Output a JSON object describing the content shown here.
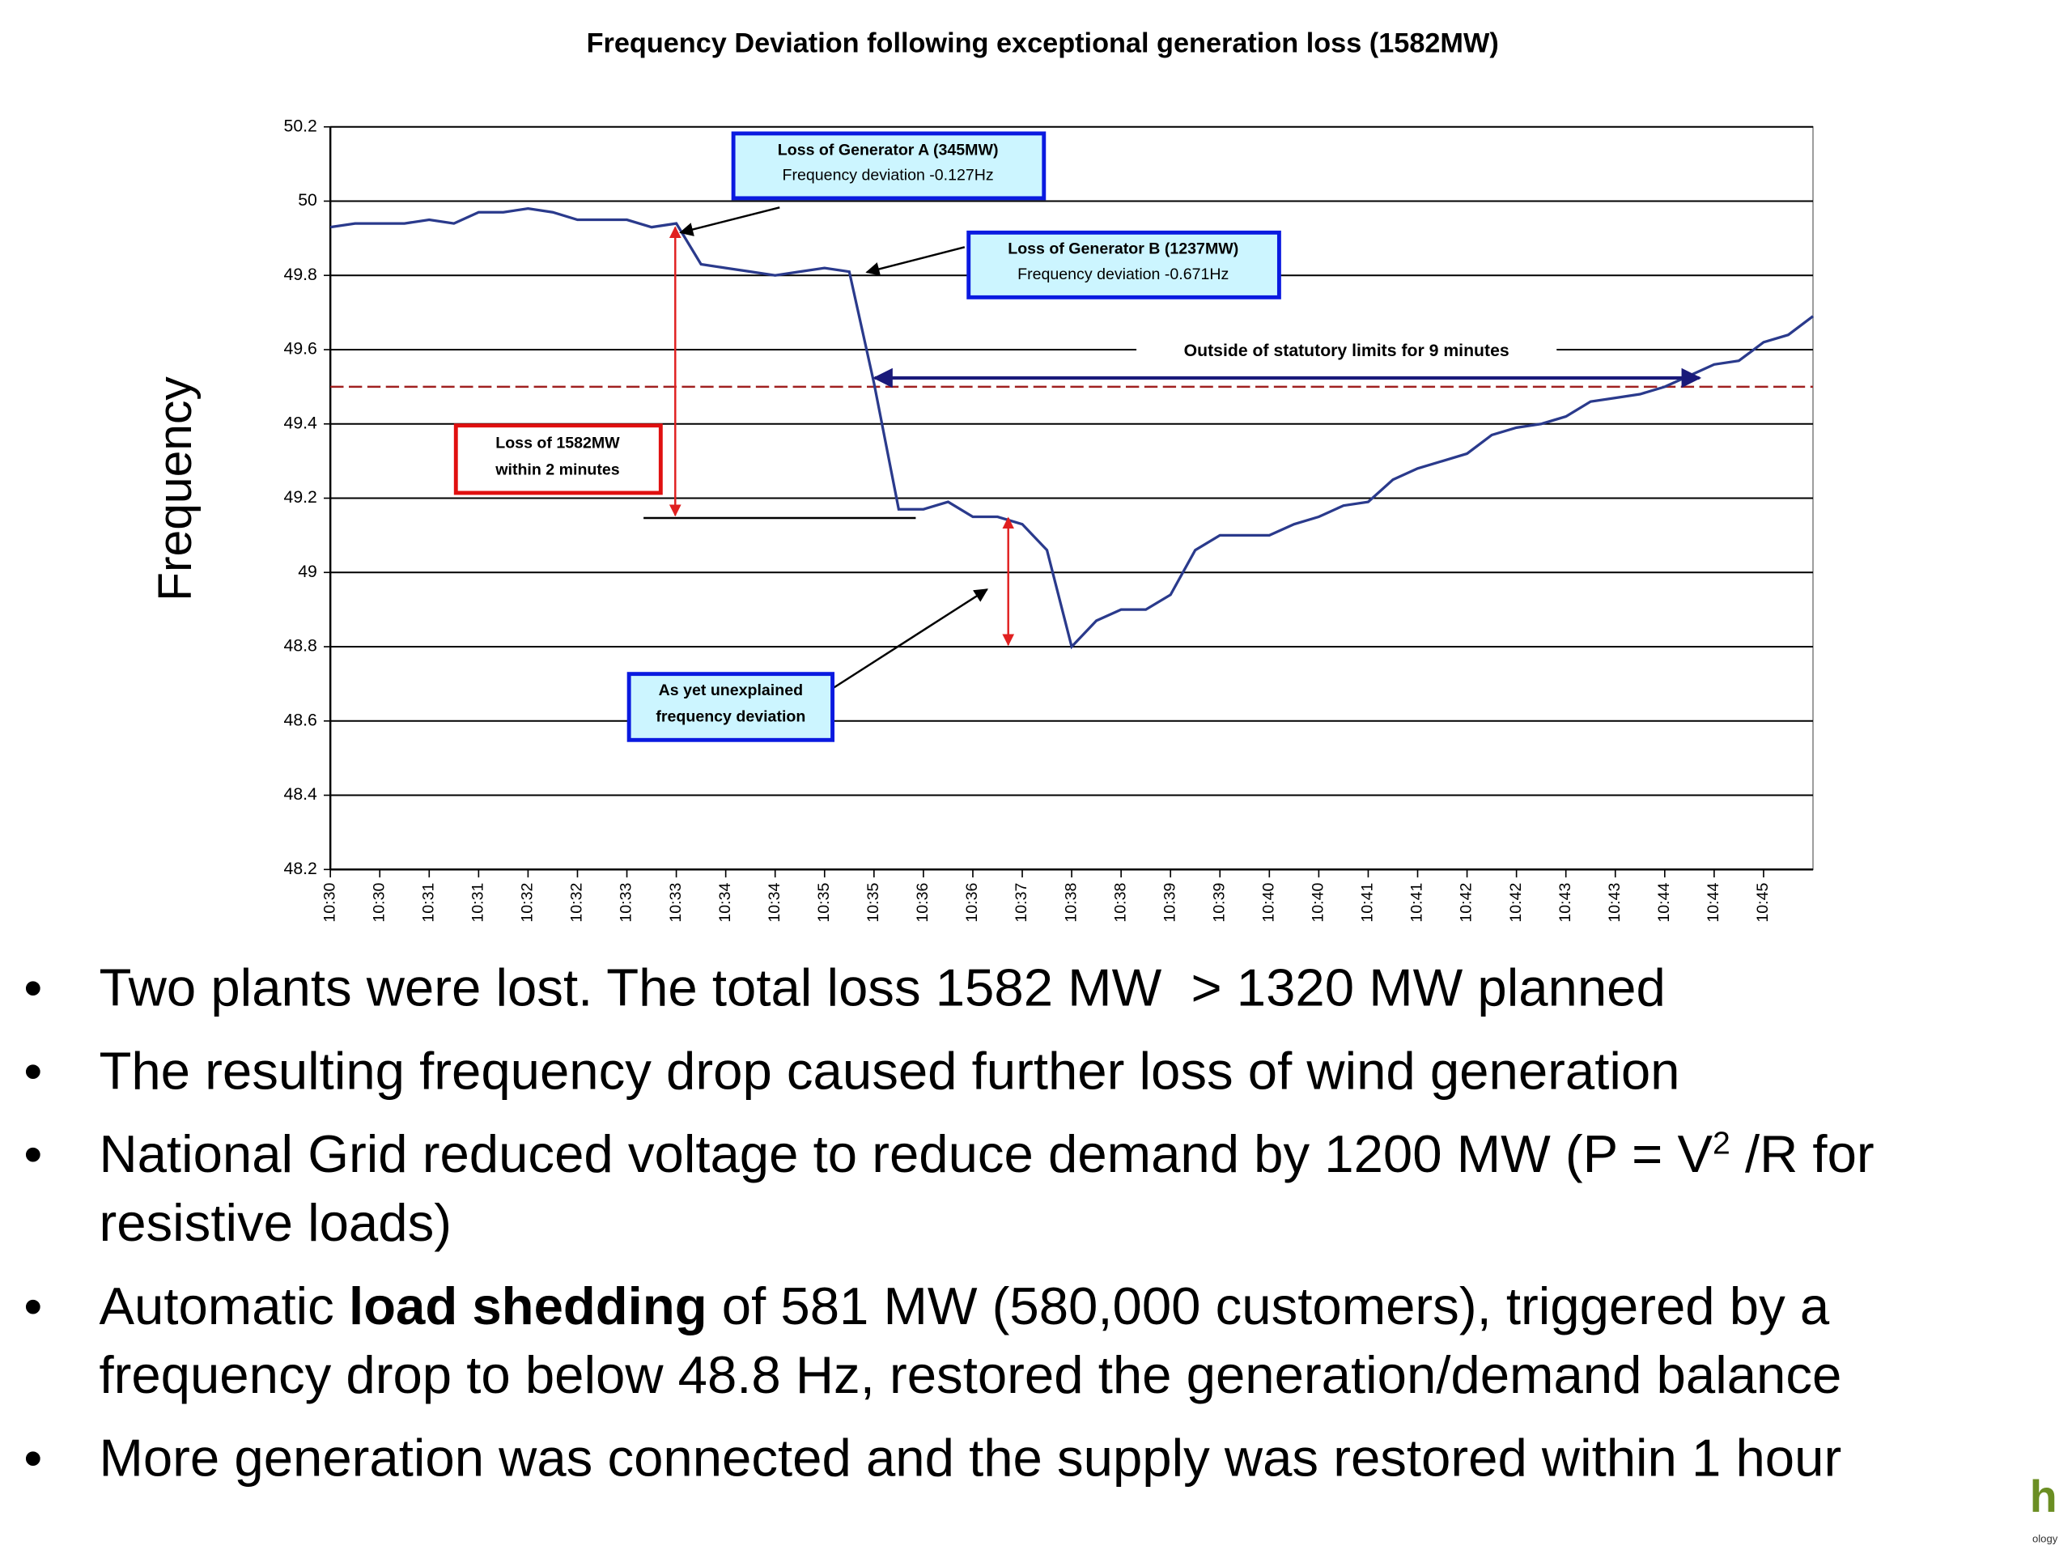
{
  "chart_data": {
    "type": "line",
    "title": "Frequency Deviation following exceptional generation loss (1582MW)",
    "y_label": "Frequency",
    "categories": [
      "10:30",
      null,
      "10:30",
      null,
      "10:31",
      null,
      "10:31",
      null,
      "10:32",
      null,
      "10:32",
      null,
      "10:33",
      null,
      "10:33",
      null,
      "10:34",
      null,
      "10:34",
      null,
      "10:35",
      null,
      "10:35",
      null,
      "10:36",
      null,
      "10:36",
      null,
      "10:37",
      null,
      "10:38",
      null,
      "10:38",
      null,
      "10:39",
      null,
      "10:39",
      null,
      "10:40",
      null,
      "10:40",
      null,
      "10:41",
      null,
      "10:41",
      null,
      "10:42",
      null,
      "10:42",
      null,
      "10:43",
      null,
      "10:43",
      null,
      "10:44",
      null,
      "10:44",
      null,
      "10:45",
      null,
      null
    ],
    "series": [
      {
        "color": "#2a3a8c",
        "values": [
          49.93,
          49.94,
          49.94,
          49.94,
          49.95,
          49.94,
          49.97,
          49.97,
          49.98,
          49.97,
          49.95,
          49.95,
          49.95,
          49.93,
          49.94,
          49.83,
          49.82,
          49.81,
          49.8,
          49.81,
          49.82,
          49.81,
          49.51,
          49.17,
          49.17,
          49.19,
          49.15,
          49.15,
          49.13,
          49.06,
          48.8,
          48.87,
          48.9,
          48.9,
          48.94,
          49.06,
          49.1,
          49.1,
          49.1,
          49.13,
          49.15,
          49.18,
          49.19,
          49.25,
          49.28,
          49.3,
          49.32,
          49.37,
          49.39,
          49.4,
          49.42,
          49.46,
          49.47,
          49.48,
          49.5,
          49.53,
          49.56,
          49.57,
          49.62,
          49.64,
          49.69
        ]
      }
    ],
    "ylim": [
      48.2,
      50.2
    ],
    "yticks": [
      48.2,
      48.4,
      48.6,
      48.8,
      49,
      49.2,
      49.4,
      49.6,
      49.8,
      50,
      50.2
    ],
    "grid": true,
    "limit_line": {
      "value": 49.5,
      "color": "#a02020"
    },
    "annotations": {
      "gen_a": [
        "Loss of Generator A (345MW)",
        "Frequency deviation -0.127Hz"
      ],
      "gen_b": [
        "Loss of Generator B (1237MW)",
        "Frequency deviation -0.671Hz"
      ],
      "loss": [
        "Loss of 1582MW",
        "within 2 minutes"
      ],
      "unexplained": [
        "As yet unexplained",
        "frequency deviation"
      ],
      "limits": "Outside of statutory limits for 9 minutes"
    }
  },
  "bullets": [
    [
      "Two plants were lost. The total loss 1582 MW  > 1320 MW planned"
    ],
    [
      "The resulting frequency drop caused further loss of wind generation"
    ],
    [
      "National Grid reduced voltage to reduce demand by 1200 MW (P = V",
      "2",
      " /R for resistive loads)"
    ],
    [
      "Automatic ",
      "load shedding",
      " of 581 MW (580,000 customers), triggered by a frequency drop to below 48.8 Hz, restored the generation/demand balance"
    ],
    [
      "More generation was connected and the supply was restored within 1 hour"
    ]
  ],
  "logo": {
    "mark": "h",
    "text": "ology"
  }
}
